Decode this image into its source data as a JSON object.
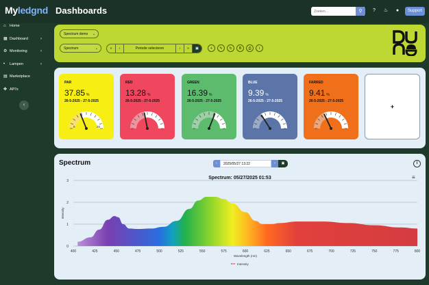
{
  "app": {
    "logo_main": "My",
    "logo_accent": "ledgnd",
    "page_title": "Dashboards"
  },
  "header": {
    "search_placeholder": "Zoeken...",
    "search_icon": "search-icon",
    "help_icon": "help-icon",
    "bell_icon": "bell-icon",
    "user_icon": "user-icon",
    "support_label": "Support"
  },
  "sidebar": {
    "items": [
      {
        "label": "Home",
        "icon": "home-icon",
        "has_chevron": false
      },
      {
        "label": "Dashboard",
        "icon": "dashboard-icon",
        "has_chevron": true
      },
      {
        "label": "Monitoring",
        "icon": "gear-icon",
        "has_chevron": true
      },
      {
        "label": "Lampen",
        "icon": "lamp-icon",
        "has_chevron": true
      },
      {
        "label": "Marketplace",
        "icon": "store-icon",
        "has_chevron": false
      },
      {
        "label": "API's",
        "icon": "code-icon",
        "has_chevron": false
      }
    ],
    "collapse_icon": "chevron-left-icon"
  },
  "toolbar": {
    "dashboard_select": "Spectrum demo",
    "spectrum_select": "Spectrum",
    "first_label": "«",
    "prev_label": "‹",
    "period_label": "Periode selecteren",
    "next_label": "›",
    "last_label": "»",
    "calendar_icon": "calendar-icon",
    "actions": [
      {
        "icon": "plus-icon",
        "glyph": "+"
      },
      {
        "icon": "pencil-icon",
        "glyph": "✎"
      },
      {
        "icon": "refresh-icon",
        "glyph": "↻"
      },
      {
        "icon": "bold-icon",
        "glyph": "B"
      },
      {
        "icon": "print-icon",
        "glyph": "⎙"
      },
      {
        "icon": "info-icon",
        "glyph": "i"
      }
    ]
  },
  "cards": [
    {
      "name": "PAR",
      "value": "37.85",
      "unit": "%",
      "range": "26-5-2025 - 27-5-2025",
      "level": 0.3785,
      "color": "#f7ef14",
      "gauge_color": "#f2c600",
      "text_color": "#111",
      "tick_labels": [
        "0",
        "20"
      ]
    },
    {
      "name": "RED",
      "value": "13.28",
      "unit": "%",
      "range": "26-5-2025 - 27-5-2025",
      "level": 0.44,
      "color": "#f0465e",
      "gauge_color": "#e03c52",
      "text_color": "#111",
      "tick_labels": []
    },
    {
      "name": "GREEN",
      "value": "16.39",
      "unit": "%",
      "range": "26-5-2025 - 27-5-2025",
      "level": 0.62,
      "color": "#5dbb6e",
      "gauge_color": "#4ea85f",
      "text_color": "#111",
      "tick_labels": []
    },
    {
      "name": "BLUE",
      "value": "9.39",
      "unit": "%",
      "range": "26-5-2025 - 27-5-2025",
      "level": 0.32,
      "color": "#5b75a8",
      "gauge_color": "#4a6496",
      "text_color": "#fff",
      "tick_labels": []
    },
    {
      "name": "FARRED",
      "value": "9.41",
      "unit": "%",
      "range": "26-5-2025 - 27-5-2025",
      "level": 0.36,
      "color": "#ef6f1a",
      "gauge_color": "#d95d10",
      "text_color": "#111",
      "tick_labels": []
    }
  ],
  "add_card_label": "+",
  "spectrum": {
    "title": "Spectrum",
    "datetime_value": "2025/05/27 13:22",
    "prev_label": "‹",
    "next_label": "›",
    "calendar_icon": "calendar-icon",
    "info_label": "i",
    "menu_icon": "hamburger-menu-icon"
  },
  "chart_data": {
    "type": "area",
    "title": "Spectrum: 05/27/2025 01:53",
    "xlabel": "Wavelength (nm)",
    "ylabel": "Intensity",
    "xlim": [
      400,
      800
    ],
    "ylim": [
      0,
      3
    ],
    "x_ticks": [
      400,
      425,
      450,
      475,
      500,
      525,
      550,
      575,
      600,
      625,
      650,
      675,
      700,
      725,
      750,
      775,
      800
    ],
    "y_ticks": [
      0,
      1,
      2,
      3
    ],
    "grid": true,
    "legend": "bottom-center",
    "series": [
      {
        "name": "Intensity",
        "x": [
          405,
          420,
          430,
          440,
          448,
          452,
          458,
          465,
          475,
          490,
          505,
          520,
          535,
          545,
          555,
          565,
          575,
          585,
          600,
          612,
          620,
          630,
          640,
          660,
          690,
          720,
          750,
          780,
          800
        ],
        "values": [
          0.2,
          0.4,
          0.75,
          1.2,
          1.37,
          1.32,
          1.0,
          0.8,
          0.78,
          0.8,
          0.88,
          1.15,
          1.7,
          2.08,
          2.25,
          2.25,
          2.15,
          1.95,
          1.55,
          1.15,
          1.0,
          1.0,
          1.05,
          1.12,
          1.12,
          1.05,
          0.95,
          0.85,
          0.8
        ]
      }
    ]
  }
}
